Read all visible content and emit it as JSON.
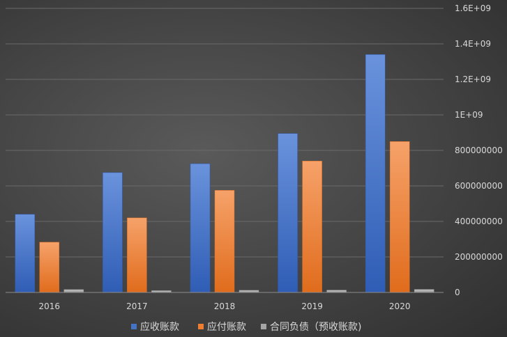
{
  "chart_data": {
    "type": "bar",
    "categories": [
      "2016",
      "2017",
      "2018",
      "2019",
      "2020"
    ],
    "series": [
      {
        "name": "应收账款",
        "color": "#4472c4",
        "values": [
          440000000,
          675000000,
          725000000,
          895000000,
          1340000000
        ]
      },
      {
        "name": "应付账款",
        "color": "#ed7d31",
        "values": [
          283000000,
          420000000,
          575000000,
          740000000,
          850000000
        ]
      },
      {
        "name": "合同负债（预收账款)",
        "color": "#a5a5a5",
        "values": [
          16000000,
          10000000,
          12000000,
          13000000,
          17000000
        ]
      }
    ],
    "ylim": [
      0,
      1600000000
    ],
    "yticks": [
      0,
      200000000,
      400000000,
      600000000,
      800000000,
      1000000000,
      1200000000,
      1400000000,
      1600000000
    ],
    "ytick_labels": [
      "0",
      "200000000",
      "400000000",
      "600000000",
      "800000000",
      "1E+09",
      "1.2E+09",
      "1.4E+09",
      "1.6E+09"
    ],
    "yaxis_side": "right",
    "grid": true,
    "legend_position": "bottom",
    "title": "",
    "xlabel": "",
    "ylabel": ""
  }
}
